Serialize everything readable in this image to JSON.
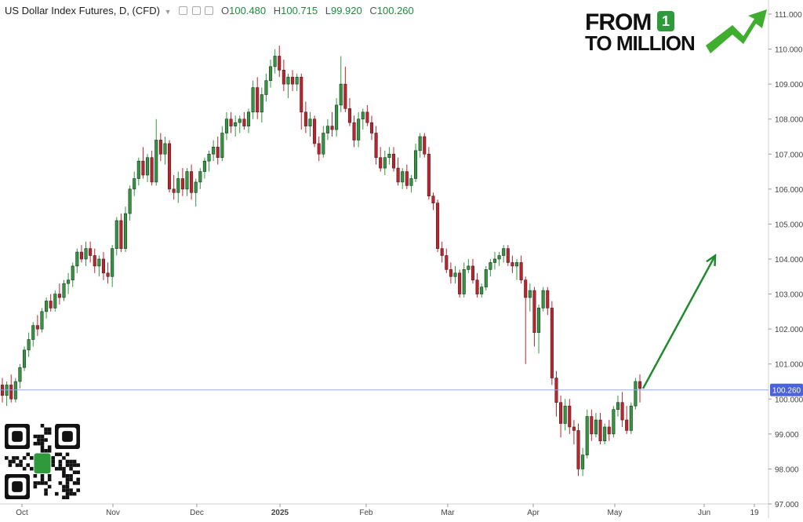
{
  "legend": {
    "title": "US Dollar Index Futures, D, (CFD)",
    "open_label": "O",
    "open": "100.480",
    "high_label": "H",
    "high": "100.715",
    "low_label": "L",
    "low": "99.920",
    "close_label": "C",
    "close": "100.260"
  },
  "branding": {
    "line1": "FROM",
    "line2": "TO MILLION",
    "badge": "1",
    "accent": "#2e9a3c",
    "qr_icon": "qr-code-icon"
  },
  "colors": {
    "up": "#2e9a3c",
    "down": "#c8202a",
    "price_line": "#9aa7e8",
    "price_badge": "#4a63d8",
    "arrow": "#1f8a2e"
  },
  "chart_data": {
    "type": "candlestick",
    "instrument": "US Dollar Index Futures, D, (CFD)",
    "last_price": "100.260",
    "ylim": [
      97.0,
      111.0
    ],
    "y_ticks": [
      "111.000",
      "110.000",
      "109.000",
      "108.000",
      "107.000",
      "106.000",
      "105.000",
      "104.000",
      "103.000",
      "102.000",
      "101.000",
      "100.000",
      "99.000",
      "98.000",
      "97.000"
    ],
    "x_ticks": [
      "Oct",
      "Nov",
      "Dec",
      "2025",
      "Feb",
      "Mar",
      "Apr",
      "May",
      "Jun",
      "19"
    ],
    "projection": {
      "from": [
        100.3
      ],
      "to": [
        104.1
      ]
    },
    "candles": [
      [
        100.4,
        100.6,
        99.9,
        100.1
      ],
      [
        100.1,
        100.5,
        99.8,
        100.4
      ],
      [
        100.4,
        100.7,
        99.9,
        100.0
      ],
      [
        100.0,
        100.6,
        99.9,
        100.5
      ],
      [
        100.5,
        101.0,
        100.3,
        100.9
      ],
      [
        100.9,
        101.5,
        100.8,
        101.4
      ],
      [
        101.4,
        101.9,
        101.2,
        101.7
      ],
      [
        101.7,
        102.2,
        101.5,
        102.1
      ],
      [
        102.1,
        102.4,
        101.8,
        102.0
      ],
      [
        102.0,
        102.6,
        101.9,
        102.5
      ],
      [
        102.5,
        102.9,
        102.3,
        102.8
      ],
      [
        102.8,
        103.0,
        102.5,
        102.6
      ],
      [
        102.6,
        103.1,
        102.5,
        103.0
      ],
      [
        103.0,
        103.3,
        102.7,
        102.9
      ],
      [
        102.9,
        103.4,
        102.8,
        103.3
      ],
      [
        103.3,
        103.6,
        103.0,
        103.4
      ],
      [
        103.4,
        103.9,
        103.2,
        103.8
      ],
      [
        103.8,
        104.3,
        103.6,
        104.2
      ],
      [
        104.2,
        104.4,
        103.9,
        104.0
      ],
      [
        104.0,
        104.5,
        103.8,
        104.3
      ],
      [
        104.3,
        104.5,
        103.9,
        104.1
      ],
      [
        104.1,
        104.3,
        103.6,
        103.8
      ],
      [
        103.8,
        104.1,
        103.5,
        104.0
      ],
      [
        104.0,
        104.2,
        103.4,
        103.6
      ],
      [
        103.6,
        103.9,
        103.3,
        103.5
      ],
      [
        103.5,
        104.4,
        103.2,
        104.3
      ],
      [
        104.3,
        105.2,
        104.1,
        105.1
      ],
      [
        105.1,
        105.3,
        104.2,
        104.3
      ],
      [
        104.3,
        105.5,
        104.2,
        105.3
      ],
      [
        105.3,
        106.1,
        105.1,
        106.0
      ],
      [
        106.0,
        106.5,
        105.8,
        106.3
      ],
      [
        106.3,
        106.9,
        106.1,
        106.8
      ],
      [
        106.8,
        107.2,
        106.3,
        106.4
      ],
      [
        106.4,
        107.0,
        106.2,
        106.9
      ],
      [
        106.9,
        107.1,
        106.1,
        106.2
      ],
      [
        106.2,
        108.0,
        106.1,
        107.4
      ],
      [
        107.4,
        107.6,
        106.8,
        107.0
      ],
      [
        107.0,
        107.5,
        106.7,
        107.3
      ],
      [
        107.3,
        107.4,
        105.9,
        106.0
      ],
      [
        106.0,
        106.4,
        105.7,
        105.9
      ],
      [
        105.9,
        106.5,
        105.6,
        106.3
      ],
      [
        106.3,
        106.6,
        105.8,
        106.0
      ],
      [
        106.0,
        106.6,
        105.8,
        106.5
      ],
      [
        106.5,
        106.7,
        105.7,
        105.9
      ],
      [
        105.9,
        106.3,
        105.5,
        106.2
      ],
      [
        106.2,
        106.6,
        106.0,
        106.5
      ],
      [
        106.5,
        106.9,
        106.3,
        106.8
      ],
      [
        106.8,
        107.1,
        106.5,
        107.0
      ],
      [
        107.0,
        107.4,
        106.8,
        107.2
      ],
      [
        107.2,
        107.5,
        106.7,
        106.9
      ],
      [
        106.9,
        107.8,
        106.8,
        107.6
      ],
      [
        107.6,
        108.2,
        107.4,
        108.0
      ],
      [
        108.0,
        108.2,
        107.6,
        107.8
      ],
      [
        107.8,
        108.1,
        107.5,
        107.9
      ],
      [
        107.9,
        108.1,
        107.6,
        108.0
      ],
      [
        108.0,
        108.2,
        107.7,
        107.8
      ],
      [
        107.8,
        108.3,
        107.6,
        108.2
      ],
      [
        108.2,
        109.1,
        108.0,
        108.9
      ],
      [
        108.9,
        109.2,
        108.0,
        108.2
      ],
      [
        108.2,
        108.9,
        107.9,
        108.7
      ],
      [
        108.7,
        109.3,
        108.5,
        109.1
      ],
      [
        109.1,
        109.7,
        108.9,
        109.5
      ],
      [
        109.5,
        110.0,
        109.3,
        109.8
      ],
      [
        109.8,
        110.1,
        109.2,
        109.4
      ],
      [
        109.4,
        109.7,
        108.8,
        109.0
      ],
      [
        109.0,
        109.3,
        108.6,
        109.2
      ],
      [
        109.2,
        109.4,
        108.8,
        109.0
      ],
      [
        109.0,
        109.3,
        108.8,
        109.2
      ],
      [
        109.2,
        109.3,
        107.7,
        108.2
      ],
      [
        108.2,
        108.5,
        107.6,
        107.8
      ],
      [
        107.8,
        108.2,
        107.5,
        108.0
      ],
      [
        108.0,
        108.1,
        107.2,
        107.3
      ],
      [
        107.3,
        107.5,
        106.8,
        107.0
      ],
      [
        107.0,
        107.8,
        106.9,
        107.6
      ],
      [
        107.6,
        108.0,
        107.4,
        107.8
      ],
      [
        107.8,
        108.2,
        107.5,
        107.7
      ],
      [
        107.7,
        108.6,
        107.5,
        108.4
      ],
      [
        108.4,
        109.8,
        108.2,
        109.0
      ],
      [
        109.0,
        109.5,
        108.2,
        108.3
      ],
      [
        108.3,
        108.6,
        107.8,
        107.9
      ],
      [
        107.9,
        108.1,
        107.2,
        107.4
      ],
      [
        107.4,
        108.2,
        107.2,
        108.0
      ],
      [
        108.0,
        108.3,
        107.7,
        108.2
      ],
      [
        108.2,
        108.4,
        107.8,
        107.9
      ],
      [
        107.9,
        108.1,
        107.4,
        107.6
      ],
      [
        107.6,
        107.8,
        106.7,
        106.9
      ],
      [
        106.9,
        107.2,
        106.5,
        106.6
      ],
      [
        106.6,
        107.1,
        106.4,
        106.9
      ],
      [
        106.9,
        107.2,
        106.7,
        107.0
      ],
      [
        107.0,
        107.2,
        106.5,
        106.6
      ],
      [
        106.6,
        106.9,
        106.1,
        106.2
      ],
      [
        106.2,
        106.6,
        106.0,
        106.5
      ],
      [
        106.5,
        106.7,
        106.0,
        106.1
      ],
      [
        106.1,
        106.4,
        105.9,
        106.3
      ],
      [
        106.3,
        107.3,
        106.2,
        107.1
      ],
      [
        107.1,
        107.6,
        106.9,
        107.5
      ],
      [
        107.5,
        107.6,
        106.9,
        107.0
      ],
      [
        107.0,
        107.2,
        105.7,
        105.8
      ],
      [
        105.8,
        105.9,
        105.4,
        105.6
      ],
      [
        105.6,
        105.7,
        104.2,
        104.3
      ],
      [
        104.3,
        104.5,
        103.9,
        104.1
      ],
      [
        104.1,
        104.3,
        103.6,
        103.7
      ],
      [
        103.7,
        103.9,
        103.3,
        103.5
      ],
      [
        103.5,
        103.8,
        103.3,
        103.6
      ],
      [
        103.6,
        103.7,
        102.9,
        103.0
      ],
      [
        103.0,
        103.9,
        102.9,
        103.7
      ],
      [
        103.7,
        104.0,
        103.6,
        103.8
      ],
      [
        103.8,
        104.0,
        103.3,
        103.4
      ],
      [
        103.4,
        103.6,
        102.9,
        103.0
      ],
      [
        103.0,
        103.3,
        102.9,
        103.2
      ],
      [
        103.2,
        103.8,
        103.1,
        103.7
      ],
      [
        103.7,
        104.0,
        103.5,
        103.9
      ],
      [
        103.9,
        104.2,
        103.7,
        104.0
      ],
      [
        104.0,
        104.2,
        103.8,
        104.1
      ],
      [
        104.1,
        104.4,
        103.9,
        104.3
      ],
      [
        104.3,
        104.4,
        103.8,
        103.9
      ],
      [
        103.9,
        104.1,
        103.6,
        103.8
      ],
      [
        103.8,
        104.0,
        103.4,
        103.9
      ],
      [
        103.9,
        104.1,
        103.3,
        103.4
      ],
      [
        103.4,
        103.5,
        101.0,
        102.9
      ],
      [
        102.9,
        103.3,
        102.5,
        103.1
      ],
      [
        103.1,
        103.2,
        101.5,
        101.9
      ],
      [
        101.9,
        102.7,
        101.3,
        102.6
      ],
      [
        102.6,
        103.2,
        102.5,
        103.1
      ],
      [
        103.1,
        103.2,
        102.4,
        102.6
      ],
      [
        102.6,
        102.8,
        100.4,
        100.6
      ],
      [
        100.6,
        100.8,
        99.5,
        99.9
      ],
      [
        99.9,
        100.1,
        98.9,
        99.3
      ],
      [
        99.3,
        100.0,
        99.1,
        99.8
      ],
      [
        99.8,
        100.0,
        99.0,
        99.2
      ],
      [
        99.2,
        99.4,
        98.7,
        99.1
      ],
      [
        99.1,
        99.3,
        97.8,
        98.0
      ],
      [
        98.0,
        98.6,
        97.8,
        98.4
      ],
      [
        98.4,
        99.7,
        98.3,
        99.5
      ],
      [
        99.5,
        99.7,
        98.8,
        99.0
      ],
      [
        99.0,
        99.6,
        98.9,
        99.4
      ],
      [
        99.4,
        99.6,
        98.7,
        98.8
      ],
      [
        98.8,
        99.3,
        98.7,
        99.2
      ],
      [
        99.2,
        99.4,
        98.8,
        99.0
      ],
      [
        99.0,
        99.8,
        98.9,
        99.7
      ],
      [
        99.7,
        100.1,
        99.5,
        99.9
      ],
      [
        99.9,
        100.2,
        99.2,
        99.4
      ],
      [
        99.4,
        99.8,
        99.0,
        99.1
      ],
      [
        99.1,
        99.9,
        99.0,
        99.8
      ],
      [
        99.8,
        100.6,
        99.7,
        100.5
      ],
      [
        100.5,
        100.7,
        99.9,
        100.3
      ]
    ]
  }
}
